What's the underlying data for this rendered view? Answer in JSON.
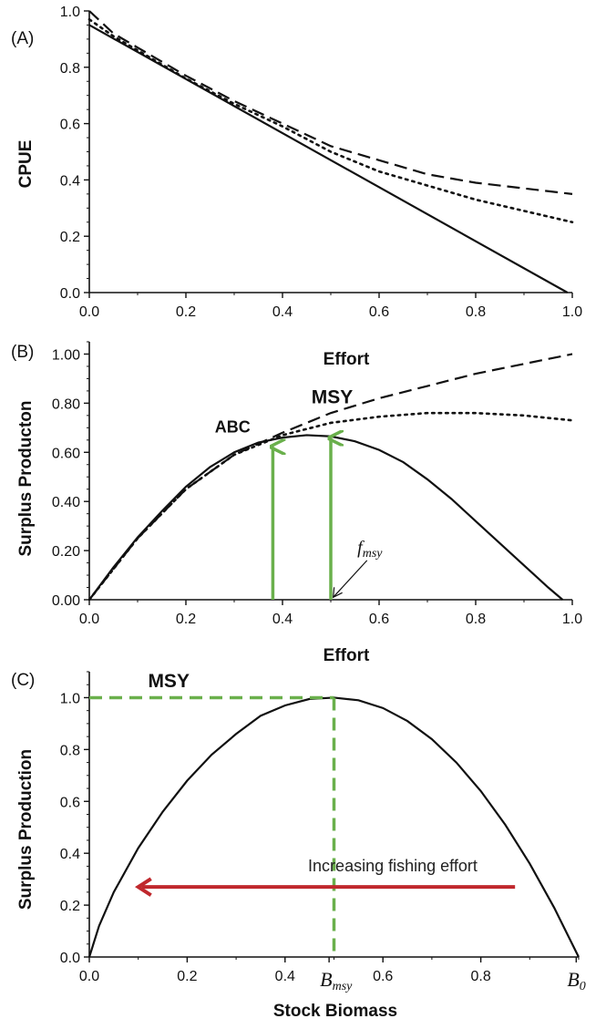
{
  "colors": {
    "green": "#6ab04c",
    "red": "#c0282d",
    "ink": "#111111"
  },
  "chart_data": [
    {
      "type": "line",
      "panel_label": "(A)",
      "title": "",
      "xlabel": "",
      "ylabel": "CPUE",
      "xlim": [
        0,
        1
      ],
      "ylim": [
        0,
        1.0
      ],
      "xticks": [
        "0.0",
        "0.2",
        "0.4",
        "0.6",
        "0.8",
        "1.0"
      ],
      "yticks": [
        "0.0",
        "0.2",
        "0.4",
        "0.6",
        "0.8",
        "1.0"
      ],
      "series": [
        {
          "style": "solid",
          "x": [
            0,
            0.99
          ],
          "y": [
            0.95,
            0.0
          ]
        },
        {
          "style": "dashed",
          "x": [
            0,
            0.05,
            0.1,
            0.2,
            0.3,
            0.4,
            0.5,
            0.6,
            0.7,
            0.8,
            0.9,
            1.0
          ],
          "y": [
            1.0,
            0.92,
            0.87,
            0.77,
            0.68,
            0.6,
            0.52,
            0.47,
            0.42,
            0.39,
            0.37,
            0.35
          ]
        },
        {
          "style": "dotted",
          "x": [
            0,
            0.05,
            0.1,
            0.2,
            0.3,
            0.4,
            0.5,
            0.6,
            0.7,
            0.8,
            0.9,
            1.0
          ],
          "y": [
            0.97,
            0.91,
            0.86,
            0.76,
            0.67,
            0.59,
            0.5,
            0.43,
            0.38,
            0.33,
            0.29,
            0.25
          ]
        }
      ]
    },
    {
      "type": "line",
      "panel_label": "(B)",
      "title": "",
      "xlabel": "Effort",
      "ylabel": "Surplus Producton",
      "xlim": [
        0,
        1
      ],
      "ylim": [
        0,
        1.05
      ],
      "xticks": [
        "0.0",
        "0.2",
        "0.4",
        "0.6",
        "0.8",
        "1.0"
      ],
      "yticks": [
        "0.00",
        "0.20",
        "0.40",
        "0.60",
        "0.80",
        "1.00"
      ],
      "series": [
        {
          "style": "solid",
          "x": [
            0,
            0.05,
            0.1,
            0.15,
            0.2,
            0.25,
            0.3,
            0.35,
            0.4,
            0.45,
            0.5,
            0.55,
            0.6,
            0.65,
            0.7,
            0.75,
            0.8,
            0.85,
            0.9,
            0.95,
            0.98
          ],
          "y": [
            0,
            0.132,
            0.254,
            0.36,
            0.46,
            0.54,
            0.6,
            0.64,
            0.66,
            0.67,
            0.665,
            0.645,
            0.61,
            0.56,
            0.49,
            0.41,
            0.32,
            0.23,
            0.14,
            0.05,
            0
          ]
        },
        {
          "style": "dashed",
          "x": [
            0,
            0.1,
            0.2,
            0.3,
            0.4,
            0.5,
            0.6,
            0.7,
            0.8,
            0.9,
            1.0
          ],
          "y": [
            0,
            0.25,
            0.45,
            0.59,
            0.68,
            0.76,
            0.82,
            0.87,
            0.92,
            0.96,
            1.0
          ]
        },
        {
          "style": "dotted",
          "x": [
            0,
            0.1,
            0.2,
            0.3,
            0.4,
            0.5,
            0.6,
            0.7,
            0.8,
            0.9,
            1.0
          ],
          "y": [
            0,
            0.25,
            0.45,
            0.59,
            0.67,
            0.72,
            0.745,
            0.76,
            0.76,
            0.75,
            0.73
          ]
        }
      ],
      "annotations": {
        "msy": "MSY",
        "abc": "ABC",
        "fmsy_main": "f",
        "fmsy_sub": "msy"
      },
      "arrows": [
        {
          "label": "ABC",
          "x": 0.38,
          "from_y": 0,
          "to_y": 0.63
        },
        {
          "label": "MSY",
          "x": 0.5,
          "from_y": 0,
          "to_y": 0.665
        }
      ]
    },
    {
      "type": "line",
      "panel_label": "(C)",
      "title": "",
      "xlabel": "Stock Biomass",
      "ylabel": "Surplus Production",
      "xlim": [
        0,
        1
      ],
      "ylim": [
        0,
        1.1
      ],
      "xticks": [
        "0.0",
        "0.2",
        "0.4",
        "0.6",
        "0.8"
      ],
      "yticks": [
        "0.0",
        "0.2",
        "0.4",
        "0.6",
        "0.8",
        "1.0"
      ],
      "xtick_labels_special": {
        "bmsy_main": "B",
        "bmsy_sub": "msy",
        "b0_main": "B",
        "b0_sub": "0"
      },
      "series": [
        {
          "style": "solid",
          "x": [
            0,
            0.02,
            0.05,
            0.1,
            0.15,
            0.2,
            0.25,
            0.3,
            0.35,
            0.4,
            0.45,
            0.5,
            0.55,
            0.6,
            0.65,
            0.7,
            0.75,
            0.8,
            0.85,
            0.9,
            0.95,
            1.0
          ],
          "y": [
            0,
            0.12,
            0.25,
            0.42,
            0.56,
            0.68,
            0.78,
            0.86,
            0.93,
            0.97,
            0.995,
            1.0,
            0.99,
            0.96,
            0.91,
            0.84,
            0.75,
            0.64,
            0.51,
            0.36,
            0.19,
            0
          ]
        }
      ],
      "annotations": {
        "msy": "MSY",
        "increasing": "Increasing fishing effort"
      },
      "msy_guides": {
        "x": 0.5,
        "y": 1.0
      },
      "effort_arrow": {
        "from_x": 0.87,
        "to_x": 0.1,
        "y": 0.27
      }
    }
  ]
}
